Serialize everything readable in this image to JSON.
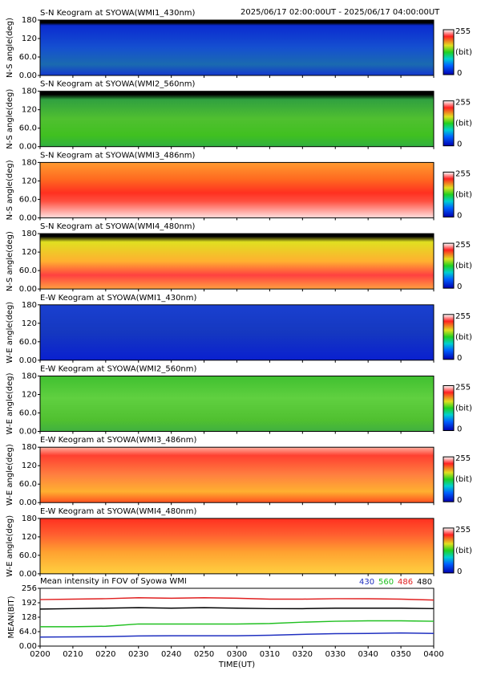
{
  "header": {
    "range": "2025/06/17 02:00:00UT - 2025/06/17 04:00:00UT"
  },
  "keograms": [
    {
      "title": "S-N Keogram at SYOWA(WMI1_430nm)",
      "ylabel": "N-S angle(deg)"
    },
    {
      "title": "S-N Keogram at SYOWA(WMI2_560nm)",
      "ylabel": "N-S angle(deg)"
    },
    {
      "title": "S-N Keogram at SYOWA(WMI3_486nm)",
      "ylabel": "N-S angle(deg)"
    },
    {
      "title": "S-N Keogram at SYOWA(WMI4_480nm)",
      "ylabel": "N-S angle(deg)"
    },
    {
      "title": "E-W Keogram at SYOWA(WMI1_430nm)",
      "ylabel": "W-E angle(deg)"
    },
    {
      "title": "E-W Keogram at SYOWA(WMI2_560nm)",
      "ylabel": "W-E angle(deg)"
    },
    {
      "title": "E-W Keogram at SYOWA(WMI3_486nm)",
      "ylabel": "W-E angle(deg)"
    },
    {
      "title": "E-W Keogram at SYOWA(WMI4_480nm)",
      "ylabel": "W-E angle(deg)"
    }
  ],
  "keogram_axis": {
    "ylim": [
      0,
      180
    ],
    "yticks": [
      {
        "value": 0,
        "label": "0.00"
      },
      {
        "value": 60,
        "label": "60.0"
      },
      120,
      180
    ]
  },
  "colorbar": {
    "ticks": [
      0,
      255
    ],
    "unit": "(bit)"
  },
  "chart_data": {
    "type": "line",
    "title": "Mean intensity in FOV of Syowa WMI",
    "y_label": "MEAN(BIT)",
    "x_label": "TIME(UT)",
    "categories": [
      "0200",
      "0210",
      "0220",
      "0230",
      "0240",
      "0250",
      "0300",
      "0310",
      "0320",
      "0330",
      "0340",
      "0350",
      "0400"
    ],
    "series": [
      {
        "name": "430",
        "color": "#2030c0",
        "values": [
          40,
          41,
          42,
          45,
          46,
          46,
          46,
          48,
          52,
          55,
          56,
          58,
          56
        ]
      },
      {
        "name": "560",
        "color": "#20c020",
        "values": [
          86,
          86,
          88,
          98,
          98,
          98,
          98,
          100,
          106,
          110,
          112,
          112,
          110
        ]
      },
      {
        "name": "486",
        "color": "#e02020",
        "values": [
          206,
          208,
          210,
          214,
          212,
          214,
          212,
          208,
          208,
          210,
          210,
          208,
          204
        ]
      },
      {
        "name": "480",
        "color": "#000000",
        "values": [
          164,
          166,
          168,
          170,
          168,
          170,
          168,
          166,
          166,
          168,
          168,
          168,
          166
        ]
      }
    ],
    "ylim": [
      0,
      256
    ],
    "yticks": [
      {
        "value": 0,
        "label": "0.00"
      },
      {
        "value": 64,
        "label": "64.0"
      },
      128,
      192,
      256
    ]
  }
}
